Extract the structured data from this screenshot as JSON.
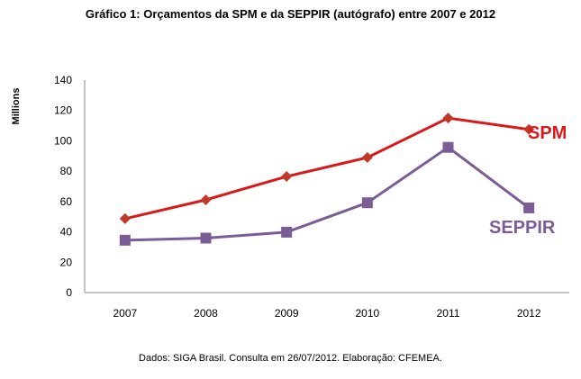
{
  "chart_data": {
    "type": "line",
    "title": "Gráfico 1: Orçamentos da SPM e da SEPPIR (autógrafo) entre 2007 e 2012",
    "source": "Dados: SIGA Brasil. Consulta em 26/07/2012. Elaboração: CFEMEA.",
    "xlabel": "",
    "ylabel": "Millions",
    "categories": [
      "2007",
      "2008",
      "2009",
      "2010",
      "2011",
      "2012"
    ],
    "ylim": [
      0,
      140
    ],
    "yticks": [
      0,
      20,
      40,
      60,
      80,
      100,
      120,
      140
    ],
    "grid": false,
    "legend": "inline labels at line ends",
    "series": [
      {
        "name": "SPM",
        "color": "#d7191c",
        "marker": "diamond",
        "marker_color": "#c0392b",
        "values": [
          48.7,
          61.1,
          76.5,
          89,
          115,
          107.5
        ]
      },
      {
        "name": "SEPPIR",
        "color": "#7b5c95",
        "marker": "square",
        "marker_color": "#7b5c95",
        "values": [
          34.5,
          35.9,
          39.8,
          59.2,
          95.7,
          55.8
        ]
      }
    ]
  }
}
